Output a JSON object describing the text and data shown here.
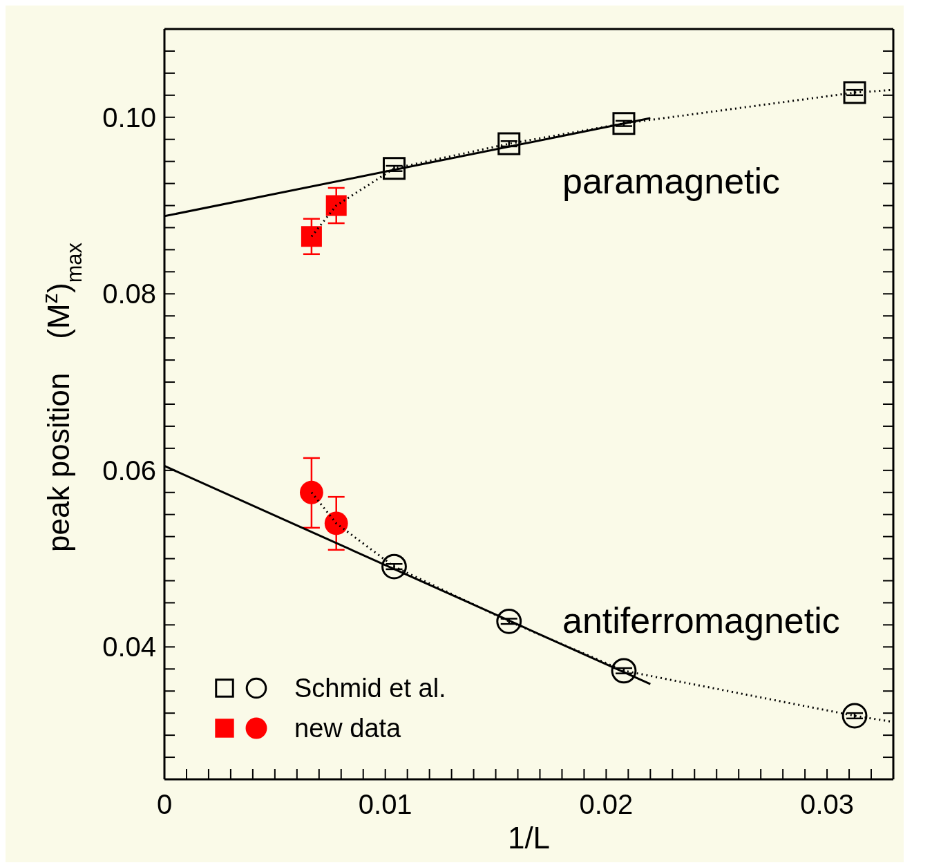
{
  "chart_data": {
    "type": "scatter",
    "xlabel": "1/L",
    "ylabel": "peak position    (M$^{z}$)$_{max}$",
    "xlim": [
      0,
      0.033
    ],
    "ylim": [
      0.025,
      0.11
    ],
    "xticks": [
      0,
      {
        "value": 0.001,
        "label": null
      },
      {
        "value": 0.002,
        "label": null
      },
      {
        "value": 0.003,
        "label": null
      },
      {
        "value": 0.004,
        "label": null
      },
      {
        "value": 0.005,
        "label": null
      },
      {
        "value": 0.006,
        "label": null
      },
      {
        "value": 0.007,
        "label": null
      },
      {
        "value": 0.008,
        "label": null
      },
      {
        "value": 0.009,
        "label": null
      },
      0.01,
      {
        "value": 0.011,
        "label": null
      },
      {
        "value": 0.012,
        "label": null
      },
      {
        "value": 0.013,
        "label": null
      },
      {
        "value": 0.014,
        "label": null
      },
      {
        "value": 0.015,
        "label": null
      },
      {
        "value": 0.016,
        "label": null
      },
      {
        "value": 0.017,
        "label": null
      },
      {
        "value": 0.018,
        "label": null
      },
      {
        "value": 0.019,
        "label": null
      },
      0.02,
      {
        "value": 0.021,
        "label": null
      },
      {
        "value": 0.022,
        "label": null
      },
      {
        "value": 0.023,
        "label": null
      },
      {
        "value": 0.024,
        "label": null
      },
      {
        "value": 0.025,
        "label": null
      },
      {
        "value": 0.026,
        "label": null
      },
      {
        "value": 0.027,
        "label": null
      },
      {
        "value": 0.028,
        "label": null
      },
      {
        "value": 0.029,
        "label": null
      },
      0.03,
      {
        "value": 0.031,
        "label": null
      },
      {
        "value": 0.032,
        "label": null
      }
    ],
    "yticks": [
      {
        "value": 0.0275,
        "label": null
      },
      {
        "value": 0.03,
        "label": null
      },
      {
        "value": 0.0325,
        "label": null
      },
      {
        "value": 0.035,
        "label": null
      },
      {
        "value": 0.0375,
        "label": null
      },
      0.04,
      {
        "value": 0.0425,
        "label": null
      },
      {
        "value": 0.045,
        "label": null
      },
      {
        "value": 0.0475,
        "label": null
      },
      {
        "value": 0.05,
        "label": null
      },
      {
        "value": 0.0525,
        "label": null
      },
      {
        "value": 0.055,
        "label": null
      },
      {
        "value": 0.0575,
        "label": null
      },
      0.06,
      {
        "value": 0.0625,
        "label": null
      },
      {
        "value": 0.065,
        "label": null
      },
      {
        "value": 0.0675,
        "label": null
      },
      {
        "value": 0.07,
        "label": null
      },
      {
        "value": 0.0725,
        "label": null
      },
      {
        "value": 0.075,
        "label": null
      },
      {
        "value": 0.0775,
        "label": null
      },
      0.08,
      {
        "value": 0.0825,
        "label": null
      },
      {
        "value": 0.085,
        "label": null
      },
      {
        "value": 0.0875,
        "label": null
      },
      {
        "value": 0.09,
        "label": null
      },
      {
        "value": 0.0925,
        "label": null
      },
      {
        "value": 0.095,
        "label": null
      },
      {
        "value": 0.0975,
        "label": null
      },
      {
        "value": 0.1,
        "label": "0.10"
      },
      {
        "value": 0.1025,
        "label": null
      },
      {
        "value": 0.105,
        "label": null
      },
      {
        "value": 0.1075,
        "label": null
      }
    ],
    "grid": false,
    "legend": "bottom left",
    "annotations": [
      "paramagnetic",
      "antiferromagnetic"
    ],
    "series": [
      {
        "type": "line",
        "color": "#000000",
        "line_style": "dotted",
        "x": [
          0.00666,
          0.00778,
          0.0104,
          0.0156,
          0.0208,
          0.03125,
          0.033
        ],
        "values": [
          0.0865,
          0.09,
          0.0942,
          0.097,
          0.0993,
          0.1028,
          0.1031
        ]
      },
      {
        "type": "line",
        "color": "#000000",
        "line_style": "dotted",
        "x": [
          0.00666,
          0.00778,
          0.0104,
          0.0156,
          0.0208,
          0.03125,
          0.033
        ],
        "values": [
          0.0575,
          0.054,
          0.0491,
          0.0429,
          0.0373,
          0.0322,
          0.0315
        ]
      },
      {
        "type": "line",
        "color": "#000000",
        "line_style": "solid",
        "x": [
          0,
          0.022
        ],
        "values": [
          0.0888,
          0.0999
        ]
      },
      {
        "type": "line",
        "color": "#000000",
        "line_style": "solid",
        "x": [
          0,
          0.022
        ],
        "values": [
          0.0605,
          0.0358
        ]
      },
      {
        "marker": "square",
        "color": "#000000",
        "x": [
          0.0104,
          0.0156,
          0.0208,
          0.03125
        ],
        "values": [
          0.0942,
          0.097,
          0.0993,
          0.1028
        ],
        "errors": [
          0.0003,
          0.0003,
          0.0003,
          0.0003
        ]
      },
      {
        "name": "Schmid et al.",
        "marker": "circle",
        "color": "#000000",
        "x": [
          0.0104,
          0.0156,
          0.0208,
          0.03125
        ],
        "values": [
          0.0491,
          0.0429,
          0.0373,
          0.0322
        ],
        "errors": [
          0.0003,
          0.0003,
          0.0003,
          0.0003
        ]
      },
      {
        "marker": "square",
        "color": "#ff0000",
        "x": [
          0.00666,
          0.00778
        ],
        "values": [
          0.0865,
          0.09
        ],
        "errors": [
          0.002,
          0.002
        ]
      },
      {
        "name": "new data",
        "marker": "circle",
        "color": "#ff0000",
        "x": [
          0.00666,
          0.00778
        ],
        "values": [
          0.0575,
          0.054
        ],
        "errors": [
          [
            0.0535,
            0.0614
          ],
          [
            0.051,
            0.057
          ]
        ]
      }
    ]
  }
}
